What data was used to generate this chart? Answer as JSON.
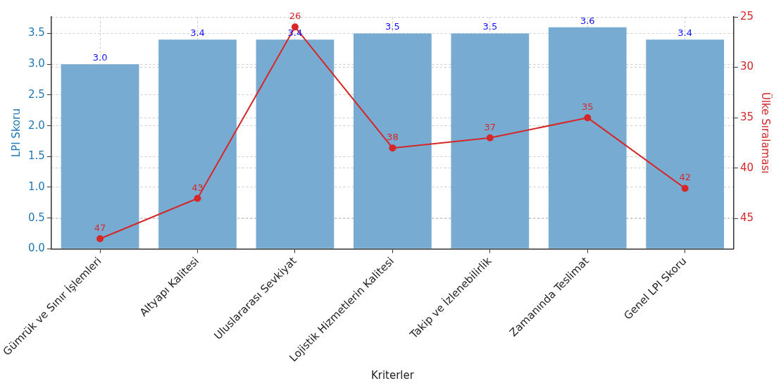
{
  "chart_data": {
    "type": "bar",
    "xlabel": "Kriterler",
    "ylabel": "LPI Skoru",
    "y2label": "Ülke Sıralaması",
    "categories": [
      "Gümrük ve Sınır İşlemleri",
      "Altyapı Kalitesi",
      "Uluslararası Sevkiyat",
      "Lojistik Hizmetlerin Kalitesi",
      "Takip ve İzlenebilirlik",
      "Zamanında Teslimat",
      "Genel LPI Skoru"
    ],
    "series": [
      {
        "color": "#77abd2",
        "values": [
          3.0,
          3.4,
          3.4,
          3.5,
          3.5,
          3.6,
          3.4
        ],
        "value_labels": [
          "3.0",
          "3.4",
          "3.4",
          "3.5",
          "3.5",
          "3.6",
          "3.4"
        ]
      },
      {
        "type": "line",
        "axis": "y2",
        "color": "#d62728",
        "values": [
          47,
          43,
          26,
          38,
          37,
          35,
          42
        ],
        "value_labels": [
          "47",
          "43",
          "26",
          "38",
          "37",
          "35",
          "42"
        ]
      }
    ],
    "ylim": [
      0,
      3.77
    ],
    "yticks": [
      {
        "value": 0,
        "label": "0.0"
      },
      0.5,
      {
        "value": 1,
        "label": "1.0"
      },
      1.5,
      {
        "value": 2,
        "label": "2.0"
      },
      2.5,
      {
        "value": 3,
        "label": "3.0"
      },
      3.5
    ],
    "y2lim": [
      48,
      25
    ],
    "y2ticks": [
      25,
      30,
      35,
      40,
      45
    ],
    "grid": true,
    "legend": false,
    "marker": "circle",
    "line_style": "solid"
  }
}
